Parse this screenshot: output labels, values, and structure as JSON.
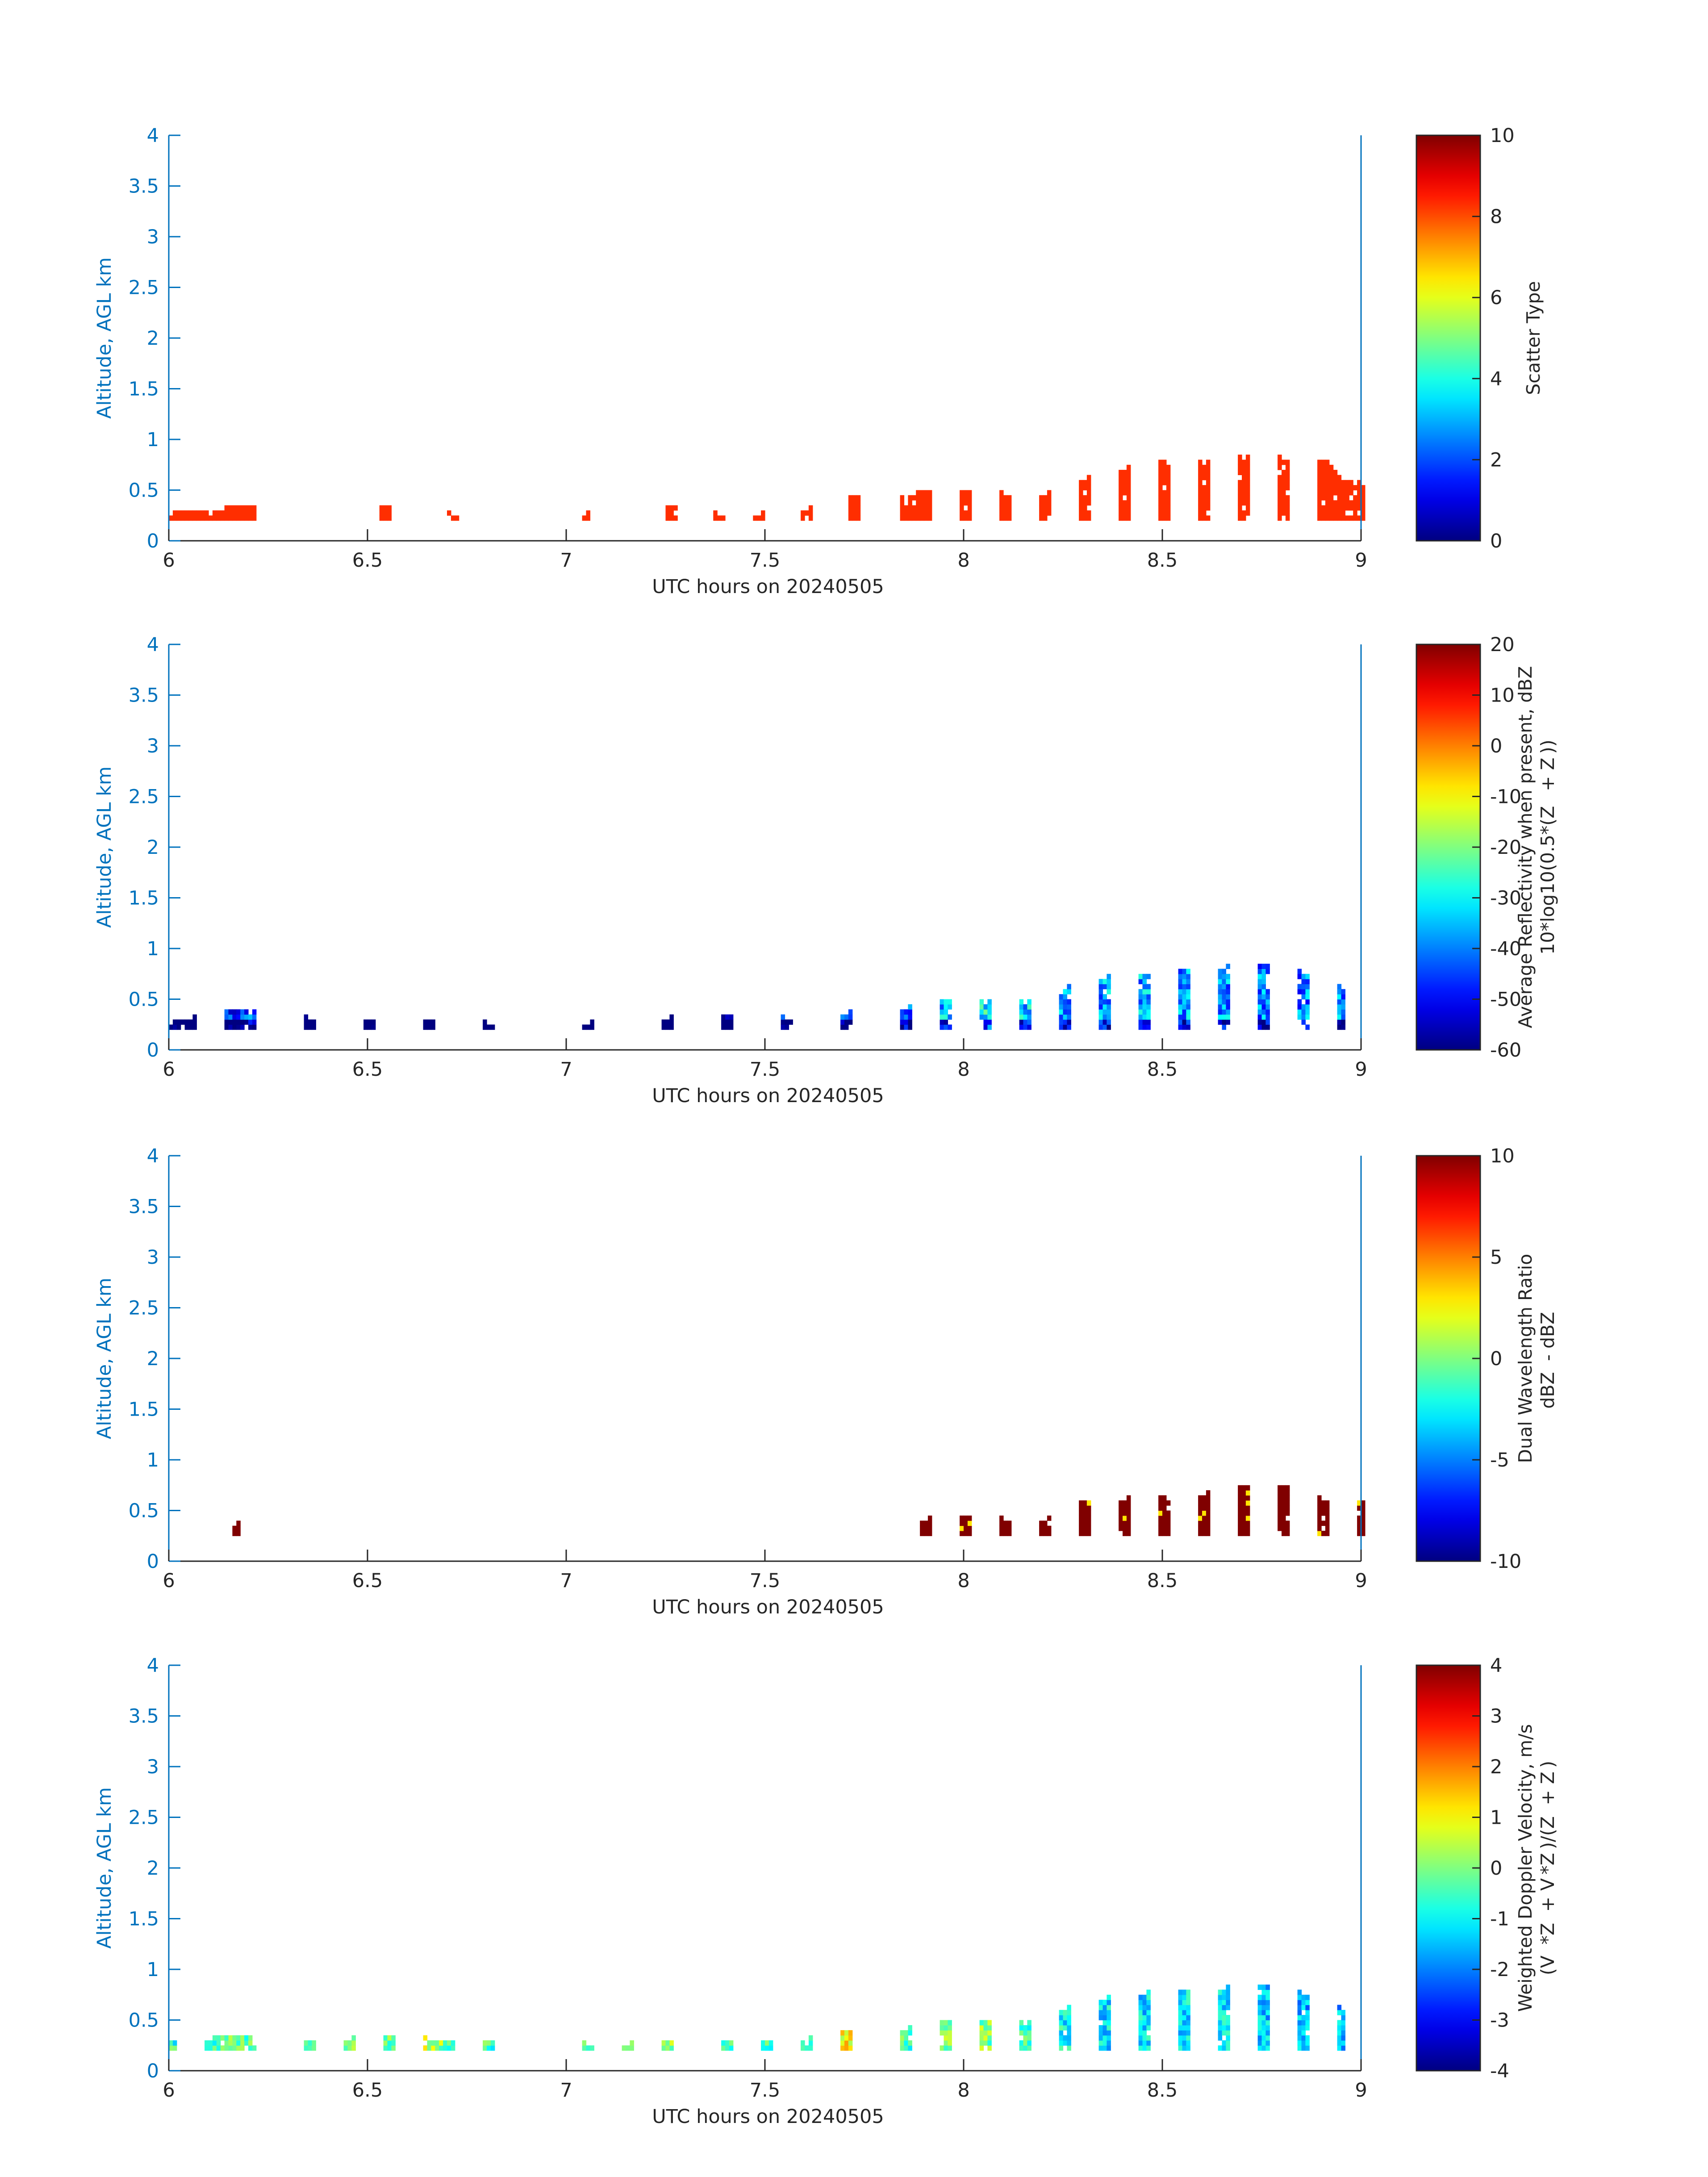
{
  "chart_data": [
    {
      "type": "heatmap",
      "xlabel": "UTC hours on 20240505",
      "ylabel": "Altitude, AGL km",
      "xlim": [
        6,
        9
      ],
      "ylim": [
        0,
        4
      ],
      "xticks": [
        "6",
        "6.5",
        "7",
        "7.5",
        "8",
        "8.5",
        "9"
      ],
      "yticks": [
        "0",
        "0.5",
        "1",
        "1.5",
        "2",
        "2.5",
        "3",
        "3.5",
        "4"
      ],
      "colorbar": {
        "label_lines": [
          "Scatter Type"
        ],
        "ticks": [
          "0",
          "2",
          "4",
          "6",
          "8",
          "10"
        ],
        "range": [
          0,
          10
        ]
      },
      "colormap": "jet",
      "bin_hours": 0.01,
      "bin_km": 0.05,
      "base_km": 0.2,
      "columns": [
        {
          "t": 6.0,
          "top": 0.25,
          "v": 8.3
        },
        {
          "t": 6.05,
          "top": 0.3,
          "v": 8.3
        },
        {
          "t": 6.1,
          "top": 0.25,
          "v": 8.3
        },
        {
          "t": 6.16,
          "top": 0.35,
          "v": 8.3
        },
        {
          "t": 6.2,
          "top": 0.35,
          "v": 8.3
        },
        {
          "t": 6.54,
          "top": 0.35,
          "v": 8.3
        },
        {
          "t": 6.71,
          "top": 0.25,
          "v": 8.3
        },
        {
          "t": 7.04,
          "top": 0.25,
          "v": 8.3
        },
        {
          "t": 7.26,
          "top": 0.35,
          "v": 8.3
        },
        {
          "t": 7.38,
          "top": 0.25,
          "v": 8.3
        },
        {
          "t": 7.48,
          "top": 0.25,
          "v": 8.3
        },
        {
          "t": 7.6,
          "top": 0.3,
          "v": 8.3
        },
        {
          "t": 7.72,
          "top": 0.45,
          "v": 8.3
        },
        {
          "t": 7.85,
          "top": 0.4,
          "v": 8.3
        },
        {
          "t": 7.9,
          "top": 0.5,
          "v": 8.3
        },
        {
          "t": 8.0,
          "top": 0.5,
          "v": 8.3
        },
        {
          "t": 8.1,
          "top": 0.45,
          "v": 8.3
        },
        {
          "t": 8.2,
          "top": 0.45,
          "v": 8.3
        },
        {
          "t": 8.3,
          "top": 0.6,
          "v": 8.3
        },
        {
          "t": 8.4,
          "top": 0.7,
          "v": 8.3
        },
        {
          "t": 8.5,
          "top": 0.8,
          "v": 8.3
        },
        {
          "t": 8.6,
          "top": 0.75,
          "v": 8.3
        },
        {
          "t": 8.7,
          "top": 0.85,
          "v": 8.3
        },
        {
          "t": 8.8,
          "top": 0.8,
          "v": 8.3
        },
        {
          "t": 8.9,
          "top": 0.8,
          "v": 8.3
        },
        {
          "t": 8.95,
          "top": 0.6,
          "v": 8.3
        },
        {
          "t": 9.0,
          "top": 0.55,
          "v": 8.3
        }
      ]
    },
    {
      "type": "heatmap",
      "xlabel": "UTC hours on 20240505",
      "ylabel": "Altitude, AGL km",
      "xlim": [
        6,
        9
      ],
      "ylim": [
        0,
        4
      ],
      "xticks": [
        "6",
        "6.5",
        "7",
        "7.5",
        "8",
        "8.5",
        "9"
      ],
      "yticks": [
        "0",
        "0.5",
        "1",
        "1.5",
        "2",
        "2.5",
        "3",
        "3.5",
        "4"
      ],
      "colorbar": {
        "label_lines": [
          "Average Reflectivity when present, dBZ",
          "10*log10(0.5*(Z    + Z ))"
        ],
        "ticks": [
          "-60",
          "-50",
          "-40",
          "-30",
          "-20",
          "-10",
          "0",
          "10",
          "20"
        ],
        "range": [
          -60,
          20
        ]
      },
      "colormap": "jet",
      "bin_hours": 0.01,
      "bin_km": 0.05,
      "base_km": 0.2,
      "columns": [
        {
          "t": 6.0,
          "top": 0.25,
          "v": -52
        },
        {
          "t": 6.05,
          "top": 0.3,
          "v": -54
        },
        {
          "t": 6.15,
          "top": 0.4,
          "v": -50
        },
        {
          "t": 6.2,
          "top": 0.4,
          "v": -44
        },
        {
          "t": 6.35,
          "top": 0.3,
          "v": -56
        },
        {
          "t": 6.5,
          "top": 0.3,
          "v": -54
        },
        {
          "t": 6.65,
          "top": 0.3,
          "v": -58
        },
        {
          "t": 6.8,
          "top": 0.25,
          "v": -56
        },
        {
          "t": 7.05,
          "top": 0.25,
          "v": -52
        },
        {
          "t": 7.25,
          "top": 0.3,
          "v": -56
        },
        {
          "t": 7.4,
          "top": 0.35,
          "v": -54
        },
        {
          "t": 7.55,
          "top": 0.3,
          "v": -50
        },
        {
          "t": 7.7,
          "top": 0.35,
          "v": -46
        },
        {
          "t": 7.85,
          "top": 0.4,
          "v": -40
        },
        {
          "t": 7.95,
          "top": 0.5,
          "v": -34
        },
        {
          "t": 8.05,
          "top": 0.5,
          "v": -30
        },
        {
          "t": 8.15,
          "top": 0.45,
          "v": -34
        },
        {
          "t": 8.25,
          "top": 0.6,
          "v": -36
        },
        {
          "t": 8.35,
          "top": 0.7,
          "v": -38
        },
        {
          "t": 8.45,
          "top": 0.75,
          "v": -36
        },
        {
          "t": 8.55,
          "top": 0.8,
          "v": -38
        },
        {
          "t": 8.65,
          "top": 0.8,
          "v": -38
        },
        {
          "t": 8.75,
          "top": 0.85,
          "v": -40
        },
        {
          "t": 8.85,
          "top": 0.75,
          "v": -40
        },
        {
          "t": 8.95,
          "top": 0.6,
          "v": -40
        }
      ]
    },
    {
      "type": "heatmap",
      "xlabel": "UTC hours on 20240505",
      "ylabel": "Altitude, AGL km",
      "xlim": [
        6,
        9
      ],
      "ylim": [
        0,
        4
      ],
      "xticks": [
        "6",
        "6.5",
        "7",
        "7.5",
        "8",
        "8.5",
        "9"
      ],
      "yticks": [
        "0",
        "0.5",
        "1",
        "1.5",
        "2",
        "2.5",
        "3",
        "3.5",
        "4"
      ],
      "colorbar": {
        "label_lines": [
          "Dual Wavelength Ratio",
          "dBZ   - dBZ "
        ],
        "ticks": [
          "-10",
          "-5",
          "0",
          "5",
          "10"
        ],
        "range": [
          -10,
          10
        ]
      },
      "colormap": "jet",
      "bin_hours": 0.01,
      "bin_km": 0.05,
      "base_km": 0.25,
      "columns": [
        {
          "t": 6.16,
          "top": 0.35,
          "v": 10
        },
        {
          "t": 7.9,
          "top": 0.4,
          "v": 10
        },
        {
          "t": 8.0,
          "top": 0.45,
          "v": 10
        },
        {
          "t": 8.1,
          "top": 0.4,
          "v": 10
        },
        {
          "t": 8.2,
          "top": 0.4,
          "v": 10
        },
        {
          "t": 8.3,
          "top": 0.6,
          "v": 10
        },
        {
          "t": 8.4,
          "top": 0.6,
          "v": 10
        },
        {
          "t": 8.5,
          "top": 0.65,
          "v": 10
        },
        {
          "t": 8.6,
          "top": 0.65,
          "v": 10
        },
        {
          "t": 8.7,
          "top": 0.75,
          "v": 10
        },
        {
          "t": 8.8,
          "top": 0.75,
          "v": 10
        },
        {
          "t": 8.9,
          "top": 0.6,
          "v": 10
        },
        {
          "t": 9.0,
          "top": 0.6,
          "v": 10
        }
      ]
    },
    {
      "type": "heatmap",
      "xlabel": "UTC hours on 20240505",
      "ylabel": "Altitude, AGL km",
      "xlim": [
        6,
        9
      ],
      "ylim": [
        0,
        4
      ],
      "xticks": [
        "6",
        "6.5",
        "7",
        "7.5",
        "8",
        "8.5",
        "9"
      ],
      "yticks": [
        "0",
        "0.5",
        "1",
        "1.5",
        "2",
        "2.5",
        "3",
        "3.5",
        "4"
      ],
      "colorbar": {
        "label_lines": [
          "Weighted Doppler Velocity, m/s",
          "(V   *Z   + V *Z )/(Z   + Z )"
        ],
        "ticks": [
          "-4",
          "-3",
          "-2",
          "-1",
          "0",
          "1",
          "2",
          "3",
          "4"
        ],
        "range": [
          -4,
          4
        ]
      },
      "colormap": "jet",
      "bin_hours": 0.01,
      "bin_km": 0.05,
      "base_km": 0.2,
      "columns": [
        {
          "t": 6.0,
          "top": 0.3,
          "v": -0.6
        },
        {
          "t": 6.1,
          "top": 0.3,
          "v": -0.8
        },
        {
          "t": 6.15,
          "top": 0.35,
          "v": 0.0
        },
        {
          "t": 6.2,
          "top": 0.35,
          "v": -0.4
        },
        {
          "t": 6.35,
          "top": 0.3,
          "v": -0.2
        },
        {
          "t": 6.45,
          "top": 0.3,
          "v": 0.2
        },
        {
          "t": 6.55,
          "top": 0.35,
          "v": -0.3
        },
        {
          "t": 6.65,
          "top": 0.3,
          "v": 0.6
        },
        {
          "t": 6.7,
          "top": 0.3,
          "v": -0.2
        },
        {
          "t": 6.8,
          "top": 0.3,
          "v": -0.4
        },
        {
          "t": 7.05,
          "top": 0.25,
          "v": -0.5
        },
        {
          "t": 7.15,
          "top": 0.25,
          "v": -0.4
        },
        {
          "t": 7.25,
          "top": 0.3,
          "v": 0.4
        },
        {
          "t": 7.4,
          "top": 0.3,
          "v": -0.6
        },
        {
          "t": 7.5,
          "top": 0.3,
          "v": -0.4
        },
        {
          "t": 7.6,
          "top": 0.3,
          "v": -1.0
        },
        {
          "t": 7.7,
          "top": 0.4,
          "v": 1.2
        },
        {
          "t": 7.85,
          "top": 0.4,
          "v": -0.6
        },
        {
          "t": 7.95,
          "top": 0.5,
          "v": 0.2
        },
        {
          "t": 8.05,
          "top": 0.5,
          "v": 0.0
        },
        {
          "t": 8.15,
          "top": 0.45,
          "v": -0.4
        },
        {
          "t": 8.25,
          "top": 0.6,
          "v": -1.0
        },
        {
          "t": 8.35,
          "top": 0.7,
          "v": -1.2
        },
        {
          "t": 8.45,
          "top": 0.75,
          "v": -1.2
        },
        {
          "t": 8.55,
          "top": 0.8,
          "v": -1.2
        },
        {
          "t": 8.65,
          "top": 0.8,
          "v": -1.2
        },
        {
          "t": 8.75,
          "top": 0.85,
          "v": -1.4
        },
        {
          "t": 8.85,
          "top": 0.75,
          "v": -1.6
        },
        {
          "t": 8.95,
          "top": 0.6,
          "v": -1.6
        }
      ]
    }
  ]
}
